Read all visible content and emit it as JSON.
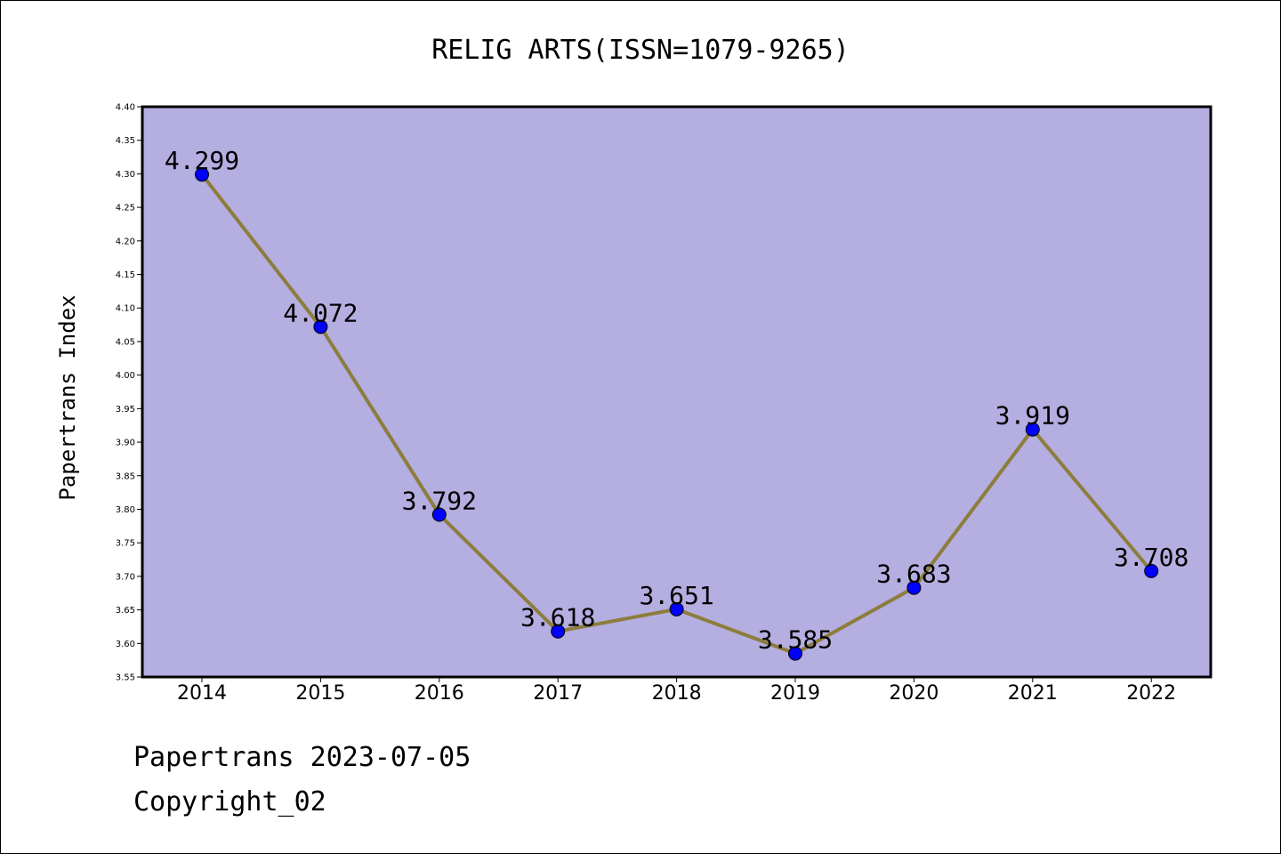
{
  "chart_data": {
    "type": "line",
    "title": "RELIG ARTS(ISSN=1079-9265)",
    "xlabel": "",
    "ylabel": "Papertrans Index",
    "categories": [
      "2014",
      "2015",
      "2016",
      "2017",
      "2018",
      "2019",
      "2020",
      "2021",
      "2022"
    ],
    "values": [
      4.299,
      4.072,
      3.792,
      3.618,
      3.651,
      3.585,
      3.683,
      3.919,
      3.708
    ],
    "data_labels": [
      "4.299",
      "4.072",
      "3.792",
      "3.618",
      "3.651",
      "3.585",
      "3.683",
      "3.919",
      "3.708"
    ],
    "ylim": [
      3.55,
      4.4
    ],
    "yticks": [
      "3.55",
      "3.60",
      "3.65",
      "3.70",
      "3.75",
      "3.80",
      "3.85",
      "3.90",
      "3.95",
      "4.00",
      "4.05",
      "4.10",
      "4.15",
      "4.20",
      "4.25",
      "4.30",
      "4.35",
      "4.40"
    ],
    "grid": false,
    "legend": "none",
    "colors": {
      "plot_background": "#b4aee1",
      "line": "#8c7d3c",
      "marker": "#0000ff"
    }
  },
  "footer": {
    "line1": "Papertrans 2023-07-05",
    "line2": "Copyright_02"
  }
}
